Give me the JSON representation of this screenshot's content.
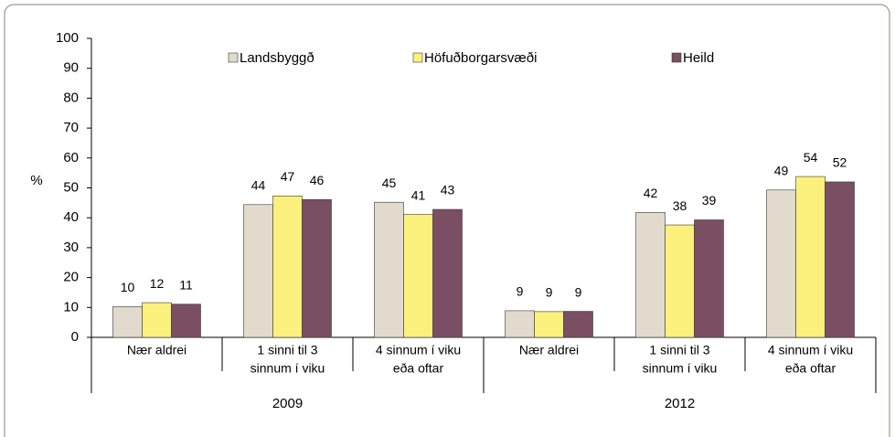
{
  "chart_data": {
    "type": "bar",
    "y_label": "%",
    "categories": [
      [
        "Nær aldrei"
      ],
      [
        "1 sinni til 3",
        "sinnum í viku"
      ],
      [
        "4 sinnum í viku",
        "eða oftar"
      ],
      [
        "Nær aldrei"
      ],
      [
        "1 sinni til 3",
        "sinnum í viku"
      ],
      [
        "4 sinnum í viku",
        "eða oftar"
      ]
    ],
    "groups": [
      {
        "label": "2009",
        "size": 3
      },
      {
        "label": "2012",
        "size": 3
      }
    ],
    "series": [
      {
        "name": "Landsbyggð",
        "color": "#e1dacd",
        "values": [
          10.3,
          44.4,
          45.2,
          8.9,
          41.8,
          49.3
        ],
        "value_labels": [
          "10",
          "44",
          "45",
          "9",
          "42",
          "49"
        ]
      },
      {
        "name": "Höfuðborgarsvæði",
        "color": "#fcf07c",
        "values": [
          11.6,
          47.3,
          41.1,
          8.6,
          37.6,
          53.8
        ],
        "value_labels": [
          "12",
          "47",
          "41",
          "9",
          "38",
          "54"
        ]
      },
      {
        "name": "Heild",
        "color": "#7a4e63",
        "values": [
          11.1,
          46.1,
          42.8,
          8.7,
          39.3,
          52.0
        ],
        "value_labels": [
          "11",
          "46",
          "43",
          "9",
          "39",
          "52"
        ]
      }
    ],
    "ylim": [
      0,
      100
    ],
    "yticks": [
      0,
      10,
      20,
      30,
      40,
      50,
      60,
      70,
      80,
      90,
      100
    ],
    "legend": "top"
  }
}
